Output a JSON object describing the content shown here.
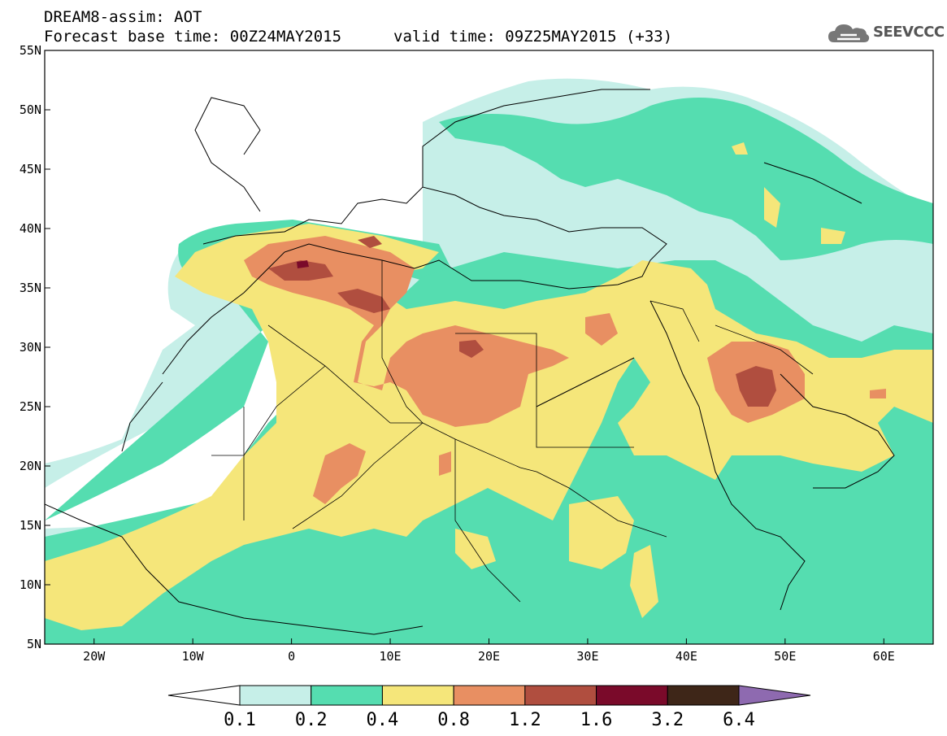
{
  "title": {
    "line1": "DREAM8-assim: AOT",
    "base_time": "Forecast base time: 00Z24MAY2015",
    "valid_time": "valid time: 09Z25MAY2015 (+33)"
  },
  "logo": {
    "text": "SEEVCCC",
    "icon": "cloud-icon"
  },
  "map": {
    "lat_labels": [
      "55N",
      "50N",
      "45N",
      "40N",
      "35N",
      "30N",
      "25N",
      "20N",
      "15N",
      "10N",
      "5N"
    ],
    "lon_labels": [
      "20W",
      "10W",
      "0",
      "10E",
      "20E",
      "30E",
      "40E",
      "50E",
      "60E"
    ],
    "lon_range": [
      -25,
      65
    ],
    "lat_range": [
      5,
      55
    ]
  },
  "colorbar": {
    "levels": [
      "0.1",
      "0.2",
      "0.4",
      "0.8",
      "1.2",
      "1.6",
      "3.2",
      "6.4"
    ],
    "colors": [
      "#ffffff",
      "#c6efe8",
      "#55ddb0",
      "#f5e67a",
      "#e88f62",
      "#b04e3f",
      "#7a0a2a",
      "#3e2618",
      "#8e6ab0"
    ]
  }
}
